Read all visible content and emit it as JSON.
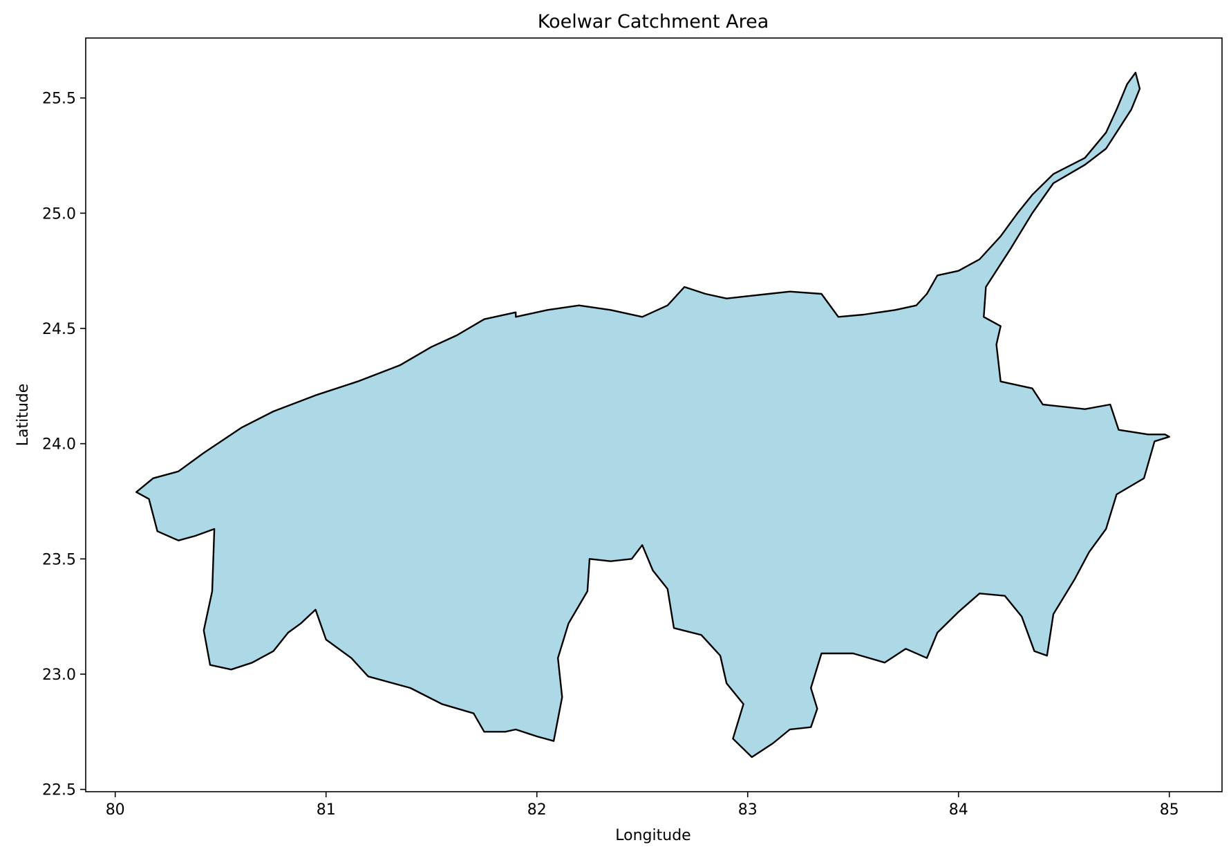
{
  "chart_data": {
    "type": "map",
    "title": "Koelwar Catchment Area",
    "xlabel": "Longitude",
    "ylabel": "Latitude",
    "xlim": [
      79.86,
      85.25
    ],
    "ylim": [
      22.49,
      25.76
    ],
    "xticks": [
      80,
      81,
      82,
      83,
      84,
      85
    ],
    "xtick_labels": [
      "80",
      "81",
      "82",
      "83",
      "84",
      "85"
    ],
    "yticks": [
      22.5,
      23.0,
      23.5,
      24.0,
      24.5,
      25.0,
      25.5
    ],
    "ytick_labels": [
      "22.5",
      "23.0",
      "23.5",
      "24.0",
      "24.5",
      "25.0",
      "25.5"
    ],
    "fill_color": "#add8e6",
    "edge_color": "#000000",
    "grid": false,
    "region": {
      "name": "Koelwar catchment",
      "boundary": [
        [
          80.1,
          23.79
        ],
        [
          80.18,
          23.85
        ],
        [
          80.3,
          23.88
        ],
        [
          80.42,
          23.96
        ],
        [
          80.6,
          24.07
        ],
        [
          80.75,
          24.14
        ],
        [
          80.95,
          24.21
        ],
        [
          81.15,
          24.27
        ],
        [
          81.35,
          24.34
        ],
        [
          81.5,
          24.42
        ],
        [
          81.62,
          24.47
        ],
        [
          81.75,
          24.54
        ],
        [
          81.9,
          24.57
        ],
        [
          81.9,
          24.55
        ],
        [
          82.05,
          24.58
        ],
        [
          82.2,
          24.6
        ],
        [
          82.35,
          24.58
        ],
        [
          82.5,
          24.55
        ],
        [
          82.62,
          24.6
        ],
        [
          82.7,
          24.68
        ],
        [
          82.8,
          24.65
        ],
        [
          82.9,
          24.63
        ],
        [
          83.0,
          24.64
        ],
        [
          83.1,
          24.65
        ],
        [
          83.2,
          24.66
        ],
        [
          83.35,
          24.65
        ],
        [
          83.43,
          24.55
        ],
        [
          83.55,
          24.56
        ],
        [
          83.7,
          24.58
        ],
        [
          83.8,
          24.6
        ],
        [
          83.85,
          24.65
        ],
        [
          83.9,
          24.73
        ],
        [
          84.0,
          24.75
        ],
        [
          84.1,
          24.8
        ],
        [
          84.2,
          24.9
        ],
        [
          84.28,
          25.0
        ],
        [
          84.35,
          25.08
        ],
        [
          84.45,
          25.17
        ],
        [
          84.6,
          25.24
        ],
        [
          84.7,
          25.35
        ],
        [
          84.75,
          25.45
        ],
        [
          84.8,
          25.56
        ],
        [
          84.84,
          25.61
        ],
        [
          84.86,
          25.54
        ],
        [
          84.82,
          25.45
        ],
        [
          84.7,
          25.28
        ],
        [
          84.6,
          25.21
        ],
        [
          84.45,
          25.13
        ],
        [
          84.35,
          25.0
        ],
        [
          84.25,
          24.85
        ],
        [
          84.13,
          24.68
        ],
        [
          84.12,
          24.55
        ],
        [
          84.2,
          24.51
        ],
        [
          84.18,
          24.43
        ],
        [
          84.2,
          24.27
        ],
        [
          84.35,
          24.24
        ],
        [
          84.4,
          24.17
        ],
        [
          84.6,
          24.15
        ],
        [
          84.72,
          24.17
        ],
        [
          84.76,
          24.06
        ],
        [
          84.9,
          24.04
        ],
        [
          84.98,
          24.04
        ],
        [
          85.0,
          24.03
        ],
        [
          84.93,
          24.01
        ],
        [
          84.88,
          23.85
        ],
        [
          84.75,
          23.78
        ],
        [
          84.7,
          23.63
        ],
        [
          84.62,
          23.53
        ],
        [
          84.55,
          23.41
        ],
        [
          84.45,
          23.26
        ],
        [
          84.42,
          23.08
        ],
        [
          84.36,
          23.1
        ],
        [
          84.3,
          23.25
        ],
        [
          84.22,
          23.34
        ],
        [
          84.1,
          23.35
        ],
        [
          84.0,
          23.27
        ],
        [
          83.9,
          23.18
        ],
        [
          83.85,
          23.07
        ],
        [
          83.75,
          23.11
        ],
        [
          83.65,
          23.05
        ],
        [
          83.5,
          23.09
        ],
        [
          83.35,
          23.09
        ],
        [
          83.3,
          22.94
        ],
        [
          83.33,
          22.85
        ],
        [
          83.3,
          22.77
        ],
        [
          83.2,
          22.76
        ],
        [
          83.12,
          22.7
        ],
        [
          83.02,
          22.64
        ],
        [
          82.93,
          22.72
        ],
        [
          82.98,
          22.87
        ],
        [
          82.9,
          22.96
        ],
        [
          82.87,
          23.08
        ],
        [
          82.78,
          23.17
        ],
        [
          82.65,
          23.2
        ],
        [
          82.62,
          23.37
        ],
        [
          82.55,
          23.45
        ],
        [
          82.5,
          23.56
        ],
        [
          82.45,
          23.5
        ],
        [
          82.35,
          23.49
        ],
        [
          82.25,
          23.5
        ],
        [
          82.24,
          23.36
        ],
        [
          82.15,
          23.22
        ],
        [
          82.1,
          23.07
        ],
        [
          82.12,
          22.9
        ],
        [
          82.08,
          22.71
        ],
        [
          82.0,
          22.73
        ],
        [
          81.9,
          22.76
        ],
        [
          81.85,
          22.75
        ],
        [
          81.75,
          22.75
        ],
        [
          81.7,
          22.83
        ],
        [
          81.55,
          22.87
        ],
        [
          81.4,
          22.94
        ],
        [
          81.2,
          22.99
        ],
        [
          81.12,
          23.07
        ],
        [
          81.0,
          23.15
        ],
        [
          80.95,
          23.28
        ],
        [
          80.88,
          23.22
        ],
        [
          80.82,
          23.18
        ],
        [
          80.75,
          23.1
        ],
        [
          80.65,
          23.05
        ],
        [
          80.55,
          23.02
        ],
        [
          80.45,
          23.04
        ],
        [
          80.42,
          23.19
        ],
        [
          80.46,
          23.36
        ],
        [
          80.47,
          23.63
        ],
        [
          80.38,
          23.6
        ],
        [
          80.3,
          23.58
        ],
        [
          80.2,
          23.62
        ],
        [
          80.16,
          23.76
        ],
        [
          80.1,
          23.79
        ]
      ]
    }
  }
}
